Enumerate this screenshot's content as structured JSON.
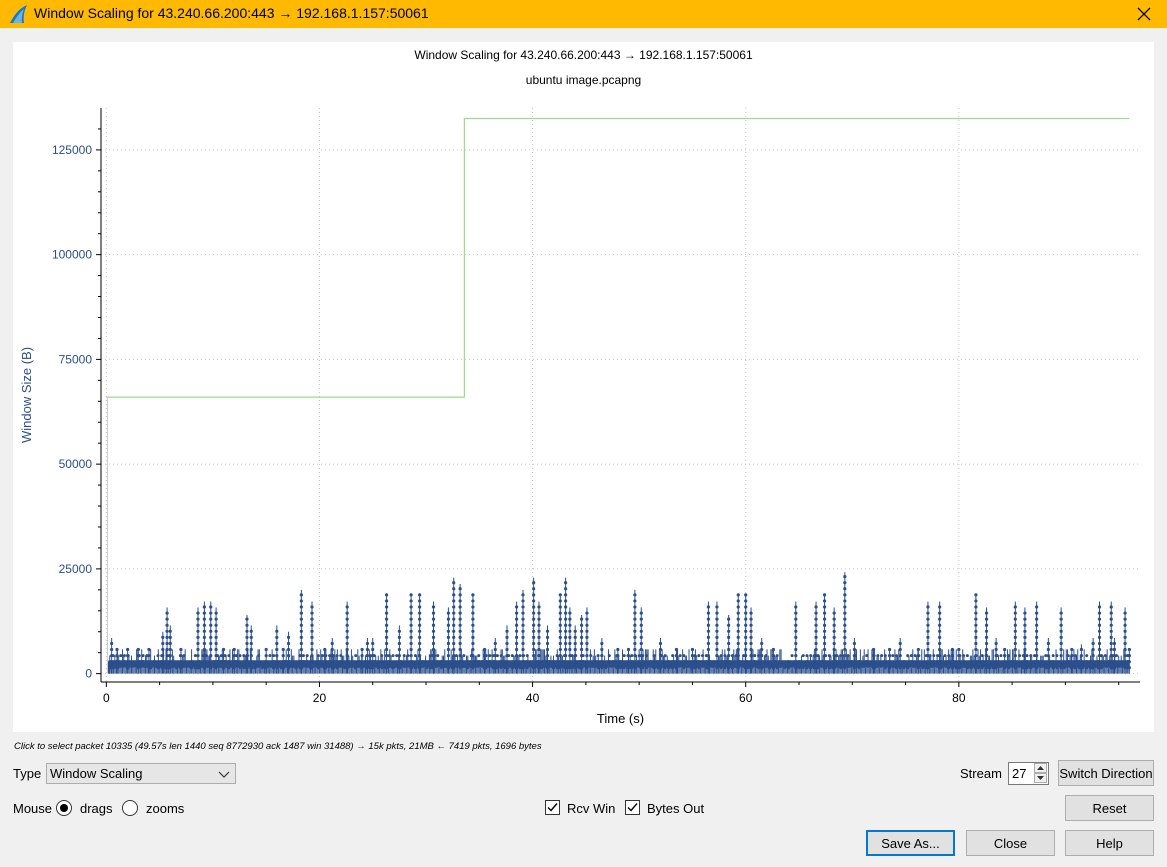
{
  "window": {
    "title": "Window Scaling for 43.240.66.200:443 → 192.168.1.157:50061",
    "accent": "#ffb900"
  },
  "plot": {
    "title": "Window Scaling for 43.240.66.200:443 → 192.168.1.157:50061",
    "subtitle": "ubuntu image.pcapng"
  },
  "chart_data": {
    "type": "line",
    "xlabel": "Time (s)",
    "ylabel": "Window Size (B)",
    "xlim": [
      -0.5,
      97
    ],
    "ylim": [
      -2000,
      135000
    ],
    "xticks": [
      0,
      20,
      40,
      60,
      80
    ],
    "yticks": [
      0,
      25000,
      50000,
      75000,
      100000,
      125000
    ],
    "xtick_labels": [
      "0",
      "20",
      "40",
      "60",
      "80"
    ],
    "ytick_labels": [
      "0",
      "25000",
      "50000",
      "75000",
      "100000",
      "125000"
    ],
    "grid": true,
    "series": [
      {
        "name": "Rcv Win",
        "style": "step",
        "color": "#9ed98e",
        "x": [
          0,
          33.6,
          33.6,
          96
        ],
        "y": [
          66000,
          66000,
          132500,
          132500
        ]
      },
      {
        "name": "Bytes Out",
        "style": "impulse",
        "color": "#2a4f8c",
        "base_points": [
          [
            0,
            0
          ],
          [
            0.3,
            2500
          ],
          [
            0.5,
            8500
          ],
          [
            1,
            5800
          ],
          [
            2,
            5800
          ],
          [
            3,
            5800
          ],
          [
            4,
            5800
          ],
          [
            5.3,
            10000
          ],
          [
            5.7,
            15800
          ],
          [
            6,
            11500
          ],
          [
            7,
            5800
          ],
          [
            8.6,
            15800
          ],
          [
            9.2,
            17200
          ],
          [
            9.8,
            17200
          ],
          [
            10.3,
            15800
          ],
          [
            11,
            5800
          ],
          [
            12,
            5800
          ],
          [
            13.2,
            14000
          ],
          [
            13.6,
            11500
          ],
          [
            15,
            5800
          ],
          [
            16,
            11500
          ],
          [
            16.6,
            5800
          ],
          [
            17.1,
            10000
          ],
          [
            18.3,
            20000
          ],
          [
            19.3,
            17200
          ],
          [
            20.5,
            5800
          ],
          [
            21.2,
            8500
          ],
          [
            22.6,
            17200
          ],
          [
            24,
            5800
          ],
          [
            24.5,
            8500
          ],
          [
            25,
            8500
          ],
          [
            26.3,
            18800
          ],
          [
            27.5,
            11500
          ],
          [
            28.6,
            18800
          ],
          [
            29.4,
            18800
          ],
          [
            30.7,
            17200
          ],
          [
            32.1,
            15800
          ],
          [
            32.6,
            22900
          ],
          [
            33.2,
            21400
          ],
          [
            34.4,
            18800
          ],
          [
            35.5,
            5800
          ],
          [
            36.5,
            8500
          ],
          [
            37.6,
            11500
          ],
          [
            38.5,
            17200
          ],
          [
            39.1,
            20000
          ],
          [
            40.1,
            22900
          ],
          [
            40.6,
            17200
          ],
          [
            41.4,
            11500
          ],
          [
            42.6,
            18800
          ],
          [
            43.1,
            22900
          ],
          [
            43.5,
            15800
          ],
          [
            44,
            11500
          ],
          [
            44.6,
            14000
          ],
          [
            45.1,
            15800
          ],
          [
            46.5,
            8500
          ],
          [
            48,
            5800
          ],
          [
            49,
            5800
          ],
          [
            49.6,
            20000
          ],
          [
            50.2,
            15800
          ],
          [
            52,
            8500
          ],
          [
            53.5,
            5800
          ],
          [
            55,
            5800
          ],
          [
            56.5,
            17200
          ],
          [
            57.3,
            17200
          ],
          [
            58.4,
            14000
          ],
          [
            59.3,
            18800
          ],
          [
            60,
            18800
          ],
          [
            60.5,
            15800
          ],
          [
            61.5,
            8500
          ],
          [
            62.6,
            5800
          ],
          [
            64.7,
            17200
          ],
          [
            66.6,
            17200
          ],
          [
            67.4,
            18800
          ],
          [
            68.3,
            15800
          ],
          [
            69.3,
            24200
          ],
          [
            70.2,
            8500
          ],
          [
            72,
            5800
          ],
          [
            73.5,
            5800
          ],
          [
            74.5,
            8500
          ],
          [
            76.2,
            5800
          ],
          [
            77.1,
            17200
          ],
          [
            78.2,
            17200
          ],
          [
            79.4,
            5800
          ],
          [
            80,
            5800
          ],
          [
            81.6,
            18800
          ],
          [
            82.6,
            15800
          ],
          [
            83.5,
            8500
          ],
          [
            84.3,
            5800
          ],
          [
            85.3,
            17200
          ],
          [
            86.2,
            15800
          ],
          [
            87.3,
            17200
          ],
          [
            88.4,
            8500
          ],
          [
            89.6,
            15800
          ],
          [
            90.6,
            5800
          ],
          [
            91.5,
            7000
          ],
          [
            92.6,
            8500
          ],
          [
            93.2,
            17200
          ],
          [
            94.3,
            17200
          ],
          [
            94.6,
            8500
          ],
          [
            95.6,
            15800
          ],
          [
            96,
            5800
          ]
        ]
      }
    ]
  },
  "status": {
    "text": "Click to select packet 10335 (49.57s len 1440 seq 8772930 ack 1487 win 31488) → 15k pkts, 21MB ← 7419 pkts, 1696 bytes"
  },
  "controls": {
    "type_label": "Type",
    "type_value": "Window Scaling",
    "stream_label": "Stream",
    "stream_value": "27",
    "switch_direction": "Switch Direction",
    "mouse_label": "Mouse",
    "drags_label": "drags",
    "zooms_label": "zooms",
    "rcv_win_label": "Rcv Win",
    "bytes_out_label": "Bytes Out",
    "reset": "Reset",
    "save_as": "Save As...",
    "close": "Close",
    "help": "Help"
  }
}
